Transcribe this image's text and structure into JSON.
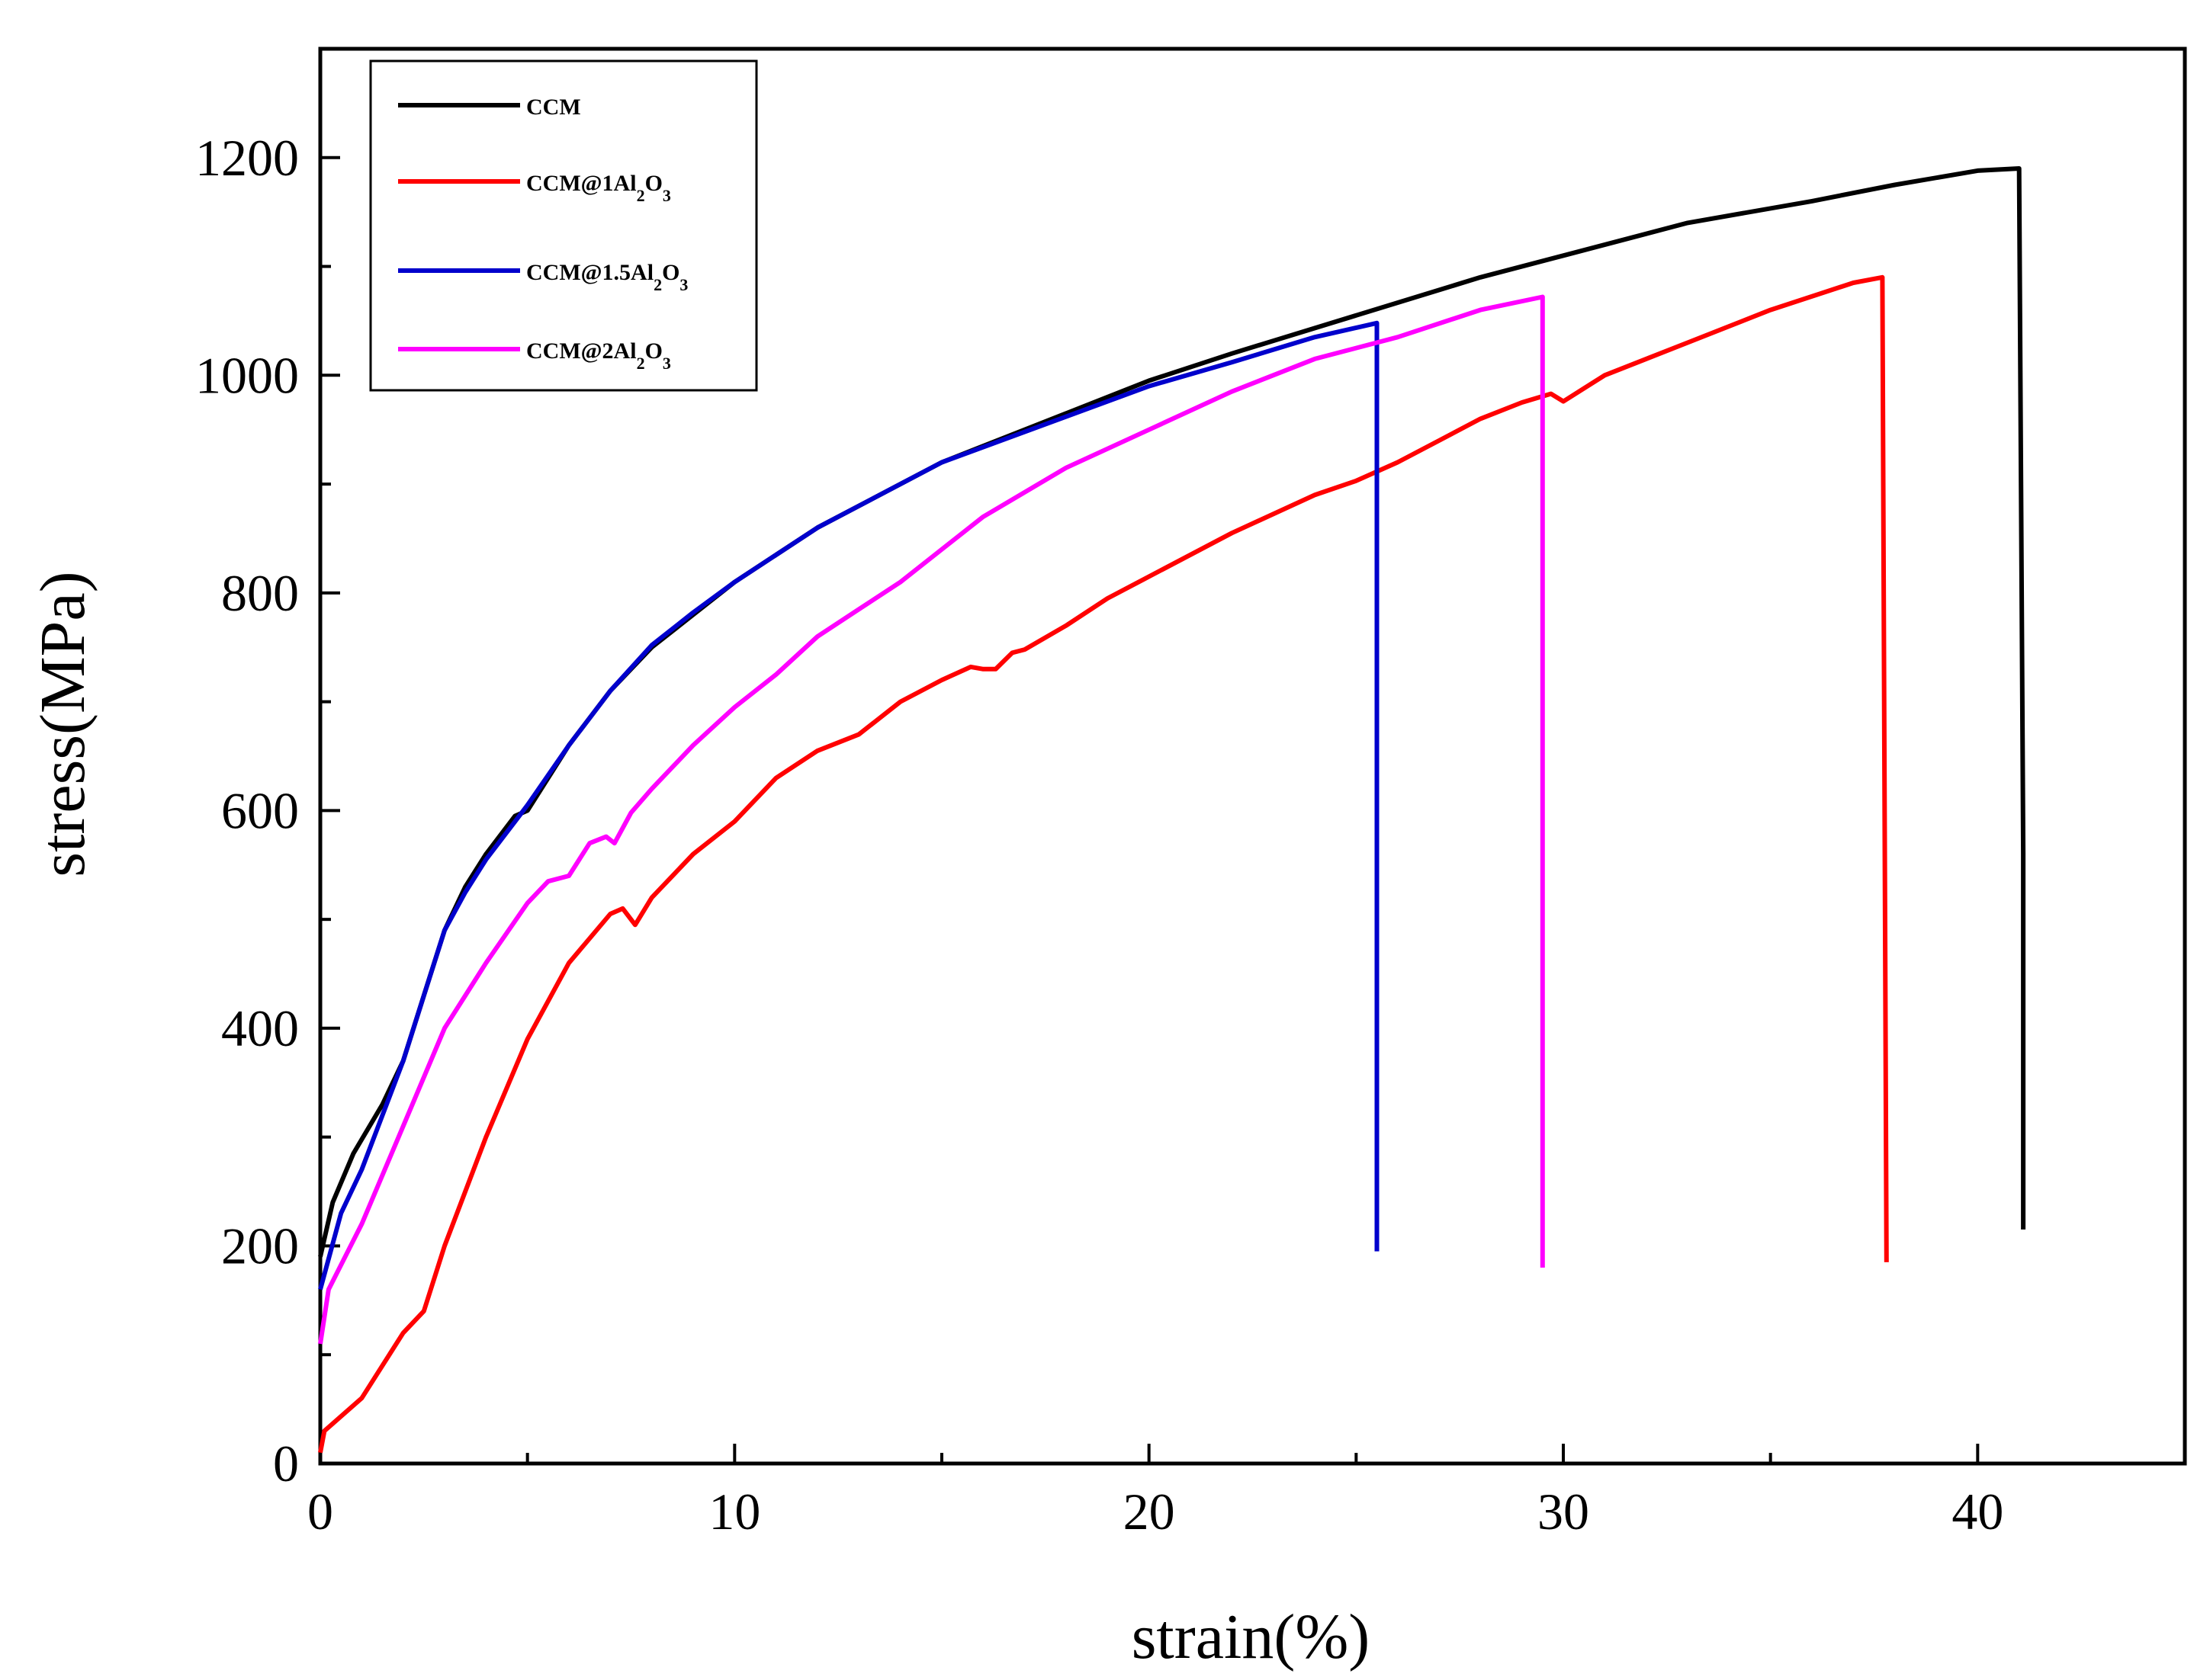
{
  "chart_data": {
    "type": "line",
    "title": "",
    "xlabel": "strain(%)",
    "ylabel": "stress(MPa)",
    "xlim": [
      0,
      45
    ],
    "ylim": [
      0,
      1300
    ],
    "xticks": [
      0,
      10,
      20,
      30,
      40
    ],
    "yticks": [
      0,
      200,
      400,
      600,
      800,
      1000,
      1200
    ],
    "xtick_labels": [
      "0",
      "10",
      "20",
      "30",
      "40"
    ],
    "ytick_labels": [
      "0",
      "200",
      "400",
      "600",
      "800",
      "1000",
      "1200"
    ],
    "grid": false,
    "legend_position": "top-left",
    "series": [
      {
        "name": "CCM",
        "legend_parts": [
          {
            "t": "CCM",
            "sub": false
          }
        ],
        "color": "#000000",
        "points": [
          [
            0,
            190
          ],
          [
            0.3,
            240
          ],
          [
            0.8,
            285
          ],
          [
            1.5,
            330
          ],
          [
            2,
            370
          ],
          [
            2.5,
            430
          ],
          [
            3,
            490
          ],
          [
            3.5,
            530
          ],
          [
            4,
            560
          ],
          [
            4.7,
            595
          ],
          [
            5,
            600
          ],
          [
            6,
            660
          ],
          [
            7,
            710
          ],
          [
            8,
            750
          ],
          [
            9,
            780
          ],
          [
            10,
            810
          ],
          [
            12,
            860
          ],
          [
            15,
            920
          ],
          [
            18,
            965
          ],
          [
            20,
            995
          ],
          [
            22,
            1020
          ],
          [
            25,
            1055
          ],
          [
            28,
            1090
          ],
          [
            30,
            1110
          ],
          [
            33,
            1140
          ],
          [
            36,
            1160
          ],
          [
            38,
            1175
          ],
          [
            40,
            1188
          ],
          [
            41,
            1190
          ],
          [
            41.1,
            560
          ],
          [
            41.1,
            215
          ]
        ]
      },
      {
        "name": "CCM@1Al2O3",
        "legend_parts": [
          {
            "t": "CCM@1Al",
            "sub": false
          },
          {
            "t": "2",
            "sub": true
          },
          {
            "t": "O",
            "sub": false
          },
          {
            "t": "3",
            "sub": true
          }
        ],
        "color": "#ff0000",
        "points": [
          [
            0,
            10
          ],
          [
            0.1,
            30
          ],
          [
            1,
            60
          ],
          [
            2,
            120
          ],
          [
            2.5,
            140
          ],
          [
            3,
            200
          ],
          [
            4,
            300
          ],
          [
            5,
            390
          ],
          [
            6,
            460
          ],
          [
            7,
            505
          ],
          [
            7.3,
            510
          ],
          [
            7.6,
            495
          ],
          [
            8,
            520
          ],
          [
            9,
            560
          ],
          [
            10,
            590
          ],
          [
            11,
            630
          ],
          [
            12,
            655
          ],
          [
            13,
            670
          ],
          [
            14,
            700
          ],
          [
            15,
            720
          ],
          [
            15.7,
            732
          ],
          [
            16,
            730
          ],
          [
            16.3,
            730
          ],
          [
            16.7,
            745
          ],
          [
            17,
            748
          ],
          [
            18,
            770
          ],
          [
            19,
            795
          ],
          [
            20,
            815
          ],
          [
            22,
            855
          ],
          [
            24,
            890
          ],
          [
            25,
            903
          ],
          [
            26,
            920
          ],
          [
            27,
            940
          ],
          [
            28,
            960
          ],
          [
            29,
            975
          ],
          [
            29.7,
            983
          ],
          [
            30,
            976
          ],
          [
            31,
            1000
          ],
          [
            33,
            1030
          ],
          [
            35,
            1060
          ],
          [
            37,
            1085
          ],
          [
            37.7,
            1090
          ],
          [
            37.8,
            185
          ]
        ]
      },
      {
        "name": "CCM@1.5Al2O3",
        "legend_parts": [
          {
            "t": "CCM@1.5Al",
            "sub": false
          },
          {
            "t": "2",
            "sub": true
          },
          {
            "t": "O",
            "sub": false
          },
          {
            "t": "3",
            "sub": true
          }
        ],
        "color": "#0000cc",
        "points": [
          [
            0,
            160
          ],
          [
            0.5,
            230
          ],
          [
            1,
            270
          ],
          [
            1.5,
            320
          ],
          [
            2,
            370
          ],
          [
            2.5,
            430
          ],
          [
            3,
            490
          ],
          [
            3.5,
            525
          ],
          [
            4,
            555
          ],
          [
            4.7,
            590
          ],
          [
            5,
            605
          ],
          [
            6,
            660
          ],
          [
            7,
            710
          ],
          [
            8,
            752
          ],
          [
            9,
            782
          ],
          [
            10,
            810
          ],
          [
            12,
            860
          ],
          [
            15,
            920
          ],
          [
            18,
            962
          ],
          [
            20,
            990
          ],
          [
            22,
            1012
          ],
          [
            24,
            1035
          ],
          [
            25.5,
            1048
          ],
          [
            25.5,
            195
          ]
        ]
      },
      {
        "name": "CCM@2Al2O3",
        "legend_parts": [
          {
            "t": "CCM@2Al",
            "sub": false
          },
          {
            "t": "2",
            "sub": true
          },
          {
            "t": "O",
            "sub": false
          },
          {
            "t": "3",
            "sub": true
          }
        ],
        "color": "#ff00ff",
        "points": [
          [
            0,
            110
          ],
          [
            0.2,
            160
          ],
          [
            1,
            220
          ],
          [
            2,
            310
          ],
          [
            3,
            400
          ],
          [
            4,
            460
          ],
          [
            5,
            515
          ],
          [
            5.5,
            535
          ],
          [
            6,
            540
          ],
          [
            6.5,
            570
          ],
          [
            6.9,
            576
          ],
          [
            7.1,
            570
          ],
          [
            7.5,
            598
          ],
          [
            8,
            620
          ],
          [
            9,
            660
          ],
          [
            10,
            695
          ],
          [
            11,
            725
          ],
          [
            12,
            760
          ],
          [
            13,
            785
          ],
          [
            14,
            810
          ],
          [
            15,
            840
          ],
          [
            16,
            870
          ],
          [
            18,
            915
          ],
          [
            20,
            950
          ],
          [
            22,
            985
          ],
          [
            24,
            1015
          ],
          [
            26,
            1035
          ],
          [
            28,
            1060
          ],
          [
            29.5,
            1072
          ],
          [
            29.5,
            180
          ]
        ]
      }
    ]
  }
}
